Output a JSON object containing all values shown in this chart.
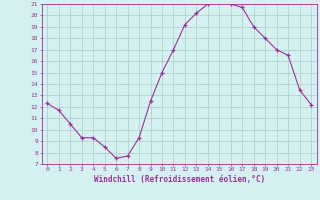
{
  "x": [
    0,
    1,
    2,
    3,
    4,
    5,
    6,
    7,
    8,
    9,
    10,
    11,
    12,
    13,
    14,
    15,
    16,
    17,
    18,
    19,
    20,
    21,
    22,
    23
  ],
  "y": [
    12.3,
    11.7,
    10.5,
    9.3,
    9.3,
    8.5,
    7.5,
    7.7,
    9.3,
    12.5,
    15.0,
    17.0,
    19.2,
    20.2,
    21.0,
    21.2,
    21.0,
    20.7,
    19.0,
    18.0,
    17.0,
    16.5,
    13.5,
    12.2
  ],
  "line_color": "#993399",
  "marker": "+",
  "marker_size": 3,
  "bg_color": "#d4f0f0",
  "grid_color": "#aacccc",
  "axis_color": "#993399",
  "xlabel": "Windchill (Refroidissement éolien,°C)",
  "xlabel_color": "#993399",
  "ytick_min": 7,
  "ytick_max": 21,
  "xtick_labels": [
    "0",
    "1",
    "2",
    "3",
    "4",
    "5",
    "6",
    "7",
    "8",
    "9",
    "10",
    "11",
    "12",
    "13",
    "14",
    "15",
    "16",
    "17",
    "18",
    "19",
    "20",
    "21",
    "22",
    "23"
  ]
}
